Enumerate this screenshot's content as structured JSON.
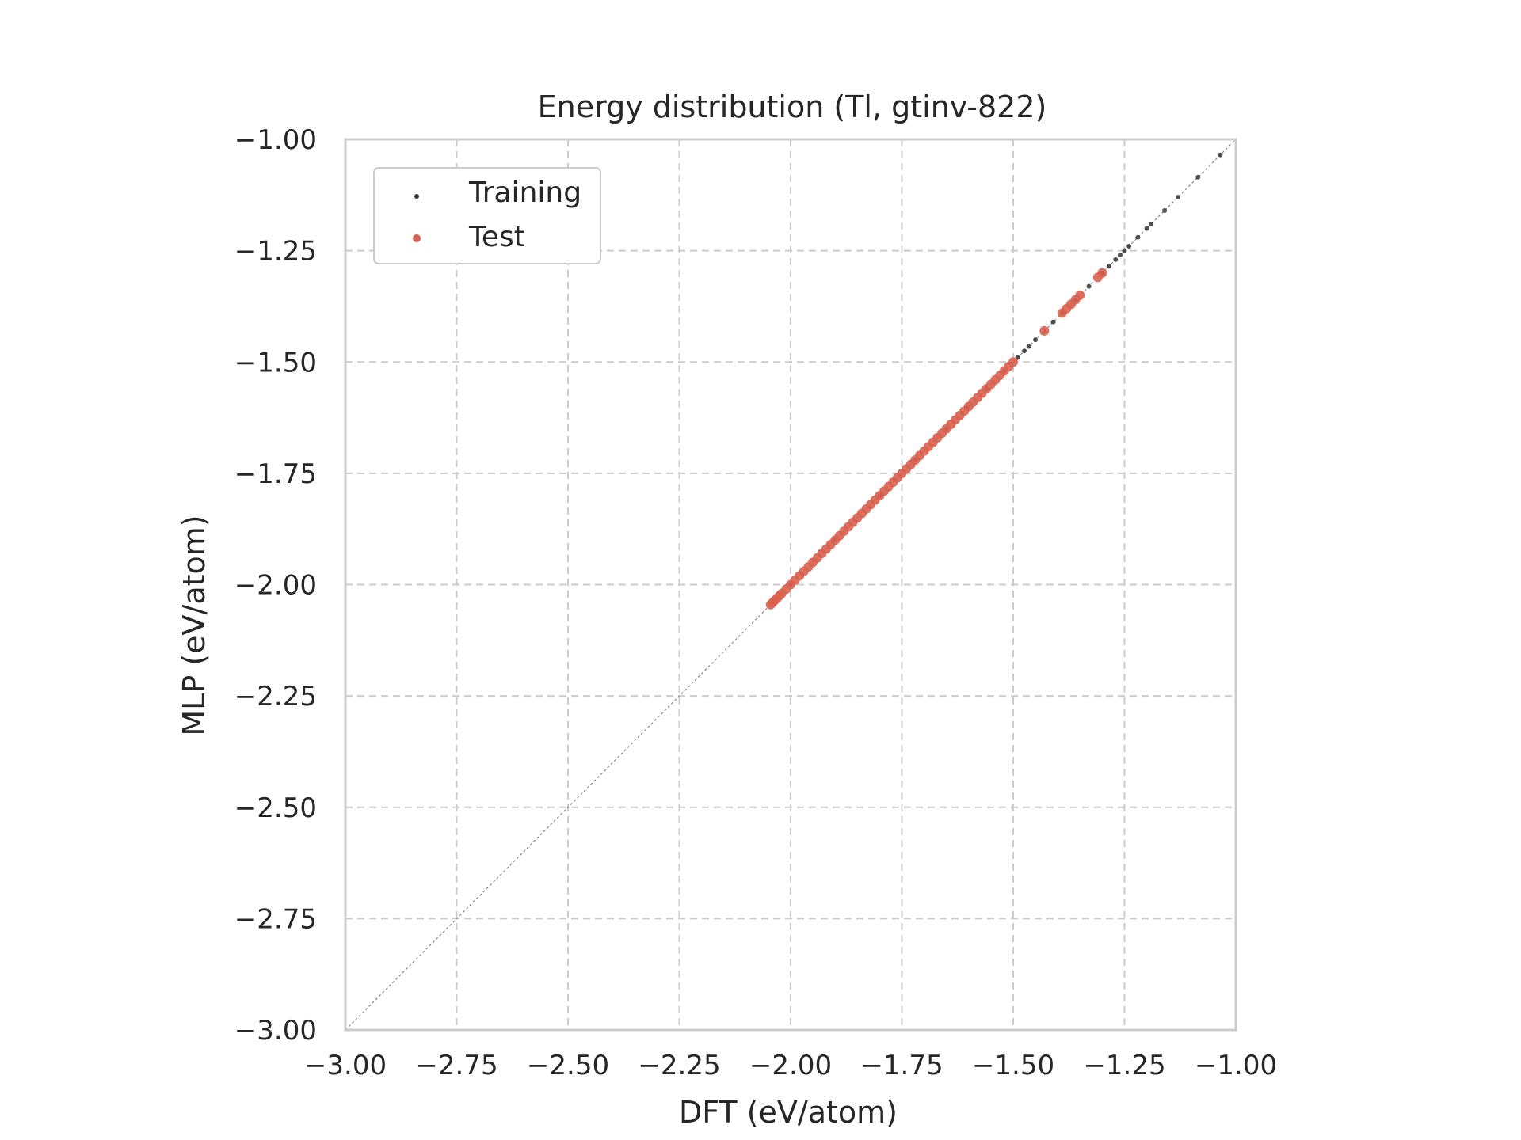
{
  "chart_data": {
    "type": "scatter",
    "title": "Energy distribution (Tl, gtinv-822)",
    "xlabel": "DFT (eV/atom)",
    "ylabel": "MLP (eV/atom)",
    "xlim": [
      -3.0,
      -1.0
    ],
    "ylim": [
      -3.0,
      -1.0
    ],
    "xticks": [
      -3.0,
      -2.75,
      -2.5,
      -2.25,
      -2.0,
      -1.75,
      -1.5,
      -1.25,
      -1.0
    ],
    "yticks": [
      -3.0,
      -2.75,
      -2.5,
      -2.25,
      -2.0,
      -1.75,
      -1.5,
      -1.25,
      -1.0
    ],
    "xtick_labels": [
      "−3.00",
      "−2.75",
      "−2.50",
      "−2.25",
      "−2.00",
      "−1.75",
      "−1.50",
      "−1.25",
      "−1.00"
    ],
    "ytick_labels": [
      "−3.00",
      "−2.75",
      "−2.50",
      "−2.25",
      "−2.00",
      "−1.75",
      "−1.50",
      "−1.25",
      "−1.00"
    ],
    "grid": true,
    "grid_style": "dashed",
    "legend_position": "top-left",
    "reference_line": {
      "from": [
        -3.0,
        -3.0
      ],
      "to": [
        -1.0,
        -1.0
      ],
      "style": "dotted",
      "color": "#888888"
    },
    "series": [
      {
        "name": "Training",
        "color": "#333333",
        "points": [
          [
            -1.035,
            -1.035
          ],
          [
            -1.085,
            -1.085
          ],
          [
            -1.13,
            -1.13
          ],
          [
            -1.16,
            -1.16
          ],
          [
            -1.19,
            -1.19
          ],
          [
            -1.2,
            -1.2
          ],
          [
            -1.22,
            -1.22
          ],
          [
            -1.24,
            -1.24
          ],
          [
            -1.25,
            -1.25
          ],
          [
            -1.26,
            -1.26
          ],
          [
            -1.27,
            -1.27
          ],
          [
            -1.285,
            -1.285
          ],
          [
            -1.3,
            -1.3
          ],
          [
            -1.33,
            -1.33
          ],
          [
            -1.36,
            -1.36
          ],
          [
            -1.39,
            -1.39
          ],
          [
            -1.41,
            -1.41
          ],
          [
            -1.43,
            -1.43
          ],
          [
            -1.45,
            -1.45
          ],
          [
            -1.465,
            -1.465
          ],
          [
            -1.475,
            -1.475
          ],
          [
            -1.49,
            -1.49
          ],
          [
            -1.52,
            -1.52
          ],
          [
            -1.56,
            -1.56
          ],
          [
            -1.6,
            -1.6
          ],
          [
            -1.65,
            -1.65
          ],
          [
            -1.72,
            -1.72
          ],
          [
            -1.8,
            -1.8
          ],
          [
            -1.9,
            -1.9
          ],
          [
            -2.0,
            -2.0
          ]
        ]
      },
      {
        "name": "Test",
        "color": "#d9604e",
        "points": [
          [
            -2.045,
            -2.045
          ],
          [
            -2.04,
            -2.04
          ],
          [
            -2.035,
            -2.035
          ],
          [
            -2.03,
            -2.03
          ],
          [
            -2.025,
            -2.025
          ],
          [
            -2.02,
            -2.02
          ],
          [
            -2.01,
            -2.01
          ],
          [
            -2.0,
            -2.0
          ],
          [
            -1.99,
            -1.99
          ],
          [
            -1.98,
            -1.98
          ],
          [
            -1.97,
            -1.97
          ],
          [
            -1.96,
            -1.96
          ],
          [
            -1.95,
            -1.95
          ],
          [
            -1.94,
            -1.94
          ],
          [
            -1.93,
            -1.93
          ],
          [
            -1.92,
            -1.92
          ],
          [
            -1.91,
            -1.91
          ],
          [
            -1.9,
            -1.9
          ],
          [
            -1.89,
            -1.89
          ],
          [
            -1.88,
            -1.88
          ],
          [
            -1.87,
            -1.87
          ],
          [
            -1.86,
            -1.86
          ],
          [
            -1.85,
            -1.85
          ],
          [
            -1.84,
            -1.84
          ],
          [
            -1.83,
            -1.83
          ],
          [
            -1.82,
            -1.82
          ],
          [
            -1.81,
            -1.81
          ],
          [
            -1.8,
            -1.8
          ],
          [
            -1.79,
            -1.79
          ],
          [
            -1.78,
            -1.78
          ],
          [
            -1.77,
            -1.77
          ],
          [
            -1.76,
            -1.76
          ],
          [
            -1.75,
            -1.75
          ],
          [
            -1.74,
            -1.74
          ],
          [
            -1.73,
            -1.73
          ],
          [
            -1.72,
            -1.72
          ],
          [
            -1.71,
            -1.71
          ],
          [
            -1.7,
            -1.7
          ],
          [
            -1.69,
            -1.69
          ],
          [
            -1.68,
            -1.68
          ],
          [
            -1.67,
            -1.67
          ],
          [
            -1.66,
            -1.66
          ],
          [
            -1.65,
            -1.65
          ],
          [
            -1.64,
            -1.64
          ],
          [
            -1.63,
            -1.63
          ],
          [
            -1.62,
            -1.62
          ],
          [
            -1.61,
            -1.61
          ],
          [
            -1.6,
            -1.6
          ],
          [
            -1.59,
            -1.59
          ],
          [
            -1.58,
            -1.58
          ],
          [
            -1.57,
            -1.57
          ],
          [
            -1.56,
            -1.56
          ],
          [
            -1.55,
            -1.55
          ],
          [
            -1.54,
            -1.54
          ],
          [
            -1.53,
            -1.53
          ],
          [
            -1.52,
            -1.52
          ],
          [
            -1.51,
            -1.51
          ],
          [
            -1.5,
            -1.5
          ],
          [
            -1.43,
            -1.43
          ],
          [
            -1.39,
            -1.39
          ],
          [
            -1.38,
            -1.38
          ],
          [
            -1.37,
            -1.37
          ],
          [
            -1.36,
            -1.36
          ],
          [
            -1.35,
            -1.35
          ],
          [
            -1.31,
            -1.31
          ],
          [
            -1.3,
            -1.3
          ]
        ]
      }
    ]
  }
}
